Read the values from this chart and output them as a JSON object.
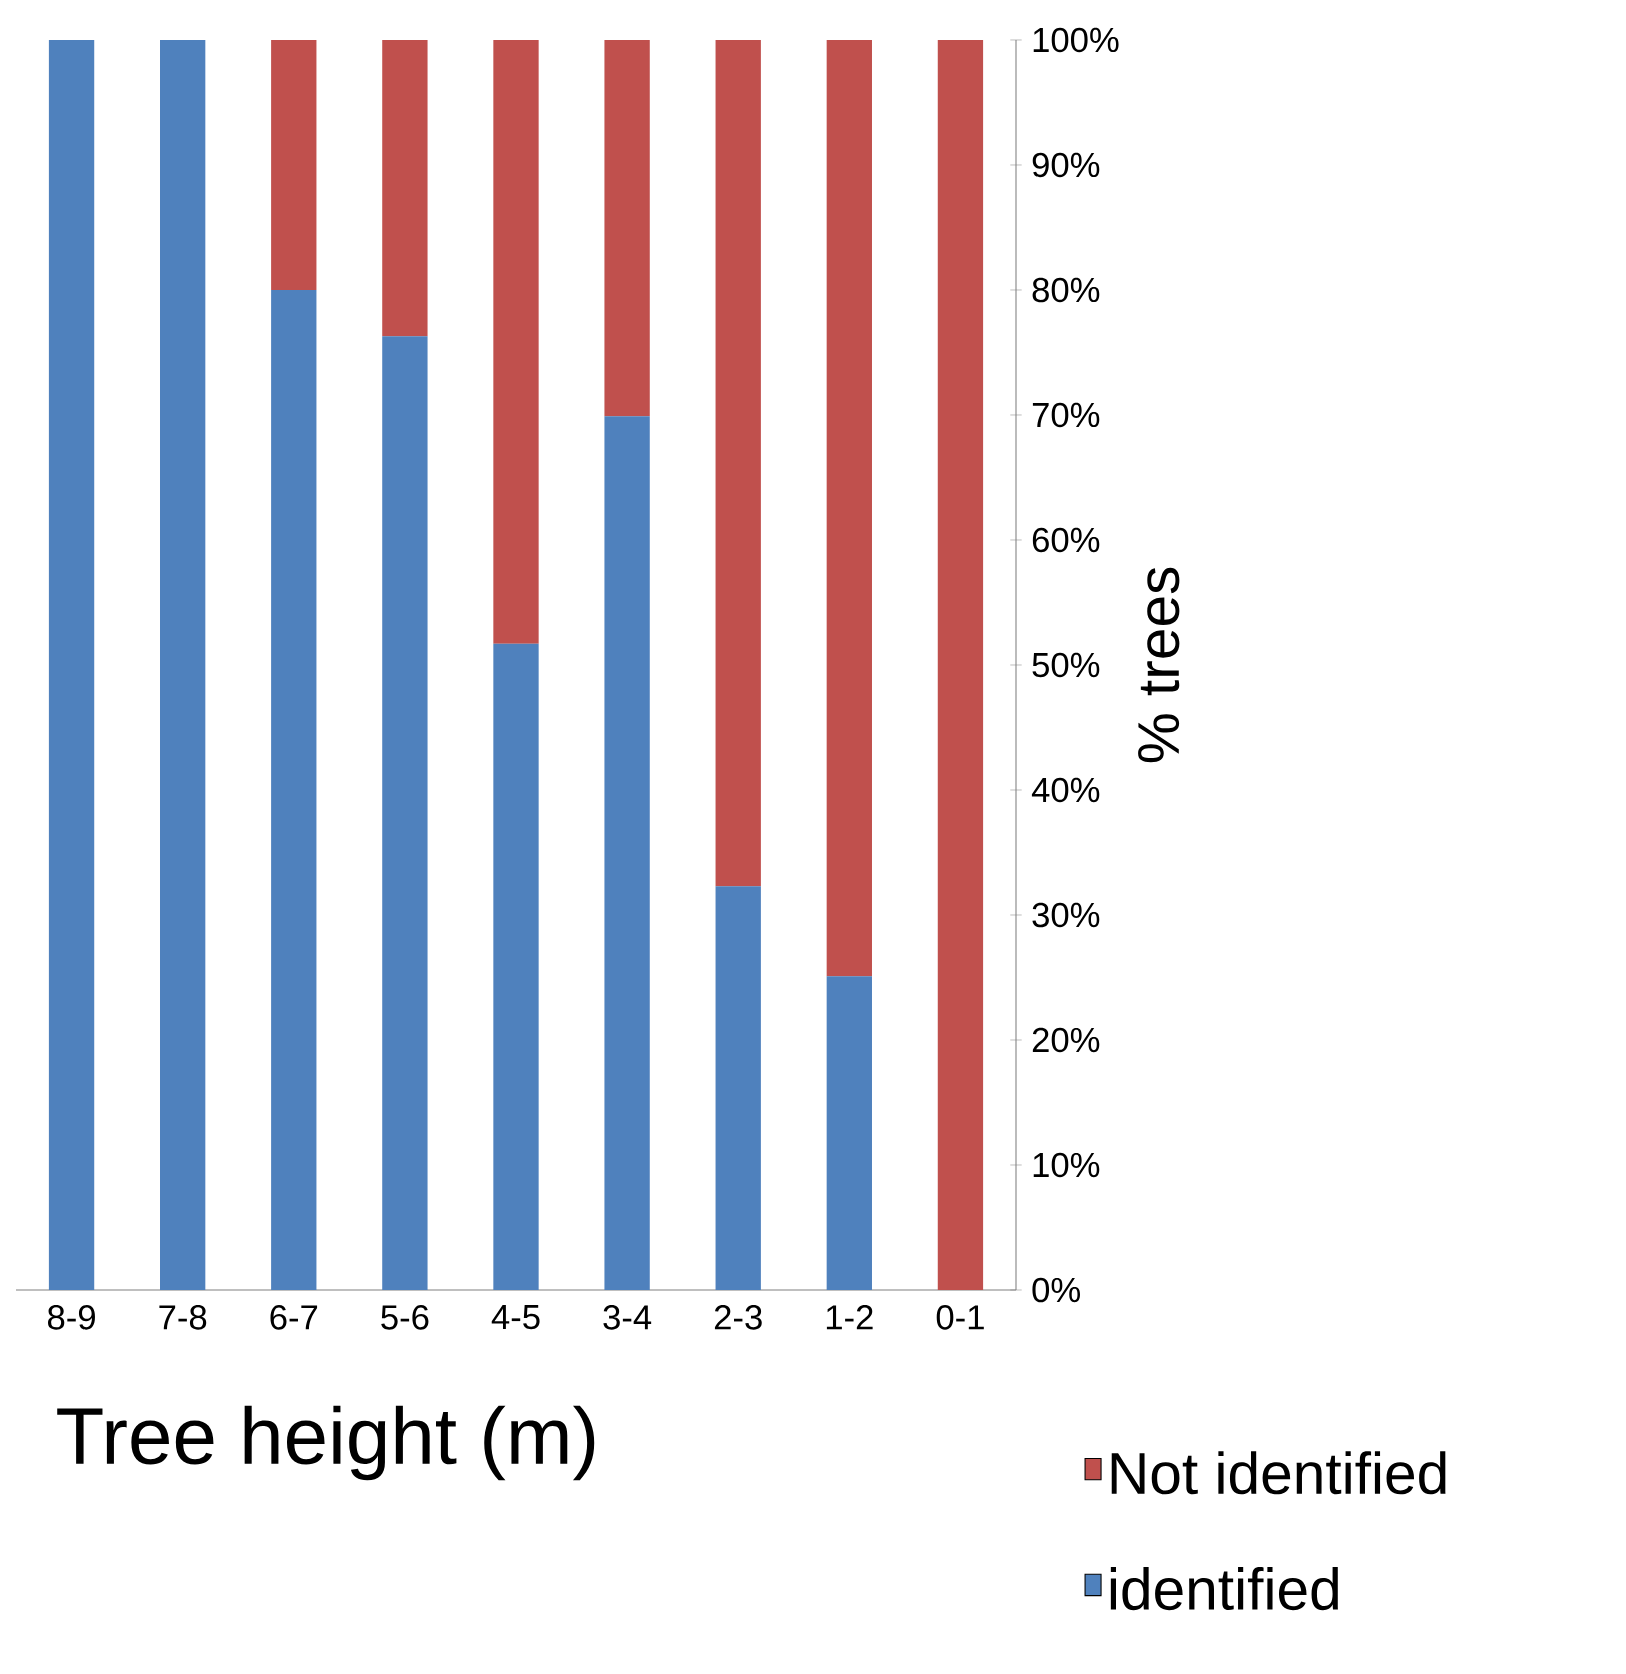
{
  "chart_data": {
    "type": "bar",
    "stacked": true,
    "xlabel": "Tree height (m)",
    "ylabel": "% trees",
    "categories": [
      "8-9",
      "7-8",
      "6-7",
      "5-6",
      "4-5",
      "3-4",
      "2-3",
      "1-2",
      "0-1"
    ],
    "series": [
      {
        "name": "identified",
        "color": "#4f81bd",
        "values": [
          100,
          100,
          80,
          76.3,
          51.7,
          69.9,
          32.3,
          25.1,
          0
        ]
      },
      {
        "name": "Not identified",
        "color": "#c0504d",
        "values": [
          0,
          0,
          20,
          23.7,
          48.3,
          30.1,
          67.7,
          74.9,
          100
        ]
      }
    ],
    "ylim": [
      0,
      100
    ],
    "yticks": [
      {
        "value": 0,
        "label": "0%"
      },
      {
        "value": 10,
        "label": "10%"
      },
      {
        "value": 20,
        "label": "20%"
      },
      {
        "value": 30,
        "label": "30%"
      },
      {
        "value": 40,
        "label": "40%"
      },
      {
        "value": 50,
        "label": "50%"
      },
      {
        "value": 60,
        "label": "60%"
      },
      {
        "value": 70,
        "label": "70%"
      },
      {
        "value": 80,
        "label": "80%"
      },
      {
        "value": 90,
        "label": "90%"
      },
      {
        "value": 100,
        "label": "100%"
      }
    ],
    "legend": "bottom right",
    "grid": false
  }
}
